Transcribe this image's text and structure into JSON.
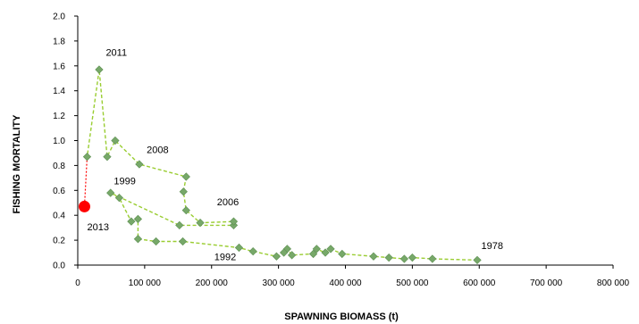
{
  "chart_data": {
    "type": "scatter",
    "title": "",
    "xlabel": "SPAWNING  BIOMASS  (t)",
    "ylabel": "FISHING  MORTALITY",
    "xlim": [
      0,
      800000
    ],
    "ylim": [
      0,
      2.0
    ],
    "x_ticks": [
      0,
      100000,
      200000,
      300000,
      400000,
      500000,
      600000,
      700000,
      800000
    ],
    "x_tick_labels": [
      "0",
      "100 000",
      "200 000",
      "300 000",
      "400 000",
      "500 000",
      "600 000",
      "700 000",
      "800 000"
    ],
    "y_ticks": [
      0.0,
      0.2,
      0.4,
      0.6,
      0.8,
      1.0,
      1.2,
      1.4,
      1.6,
      1.8,
      2.0
    ],
    "y_tick_labels": [
      "0.0",
      "0.2",
      "0.4",
      "0.6",
      "0.8",
      "1.0",
      "1.2",
      "1.4",
      "1.6",
      "1.8",
      "2.0"
    ],
    "grid": false,
    "legend": "none",
    "series": [
      {
        "style": "dashed line with diamond markers",
        "color": "#9acd32",
        "marker_color": "#77a869",
        "points": [
          {
            "x": 597000,
            "y": 0.04
          },
          {
            "x": 530000,
            "y": 0.05
          },
          {
            "x": 500000,
            "y": 0.06
          },
          {
            "x": 488000,
            "y": 0.05
          },
          {
            "x": 465000,
            "y": 0.06
          },
          {
            "x": 442000,
            "y": 0.07
          },
          {
            "x": 395000,
            "y": 0.09
          },
          {
            "x": 378000,
            "y": 0.13
          },
          {
            "x": 370000,
            "y": 0.1
          },
          {
            "x": 357000,
            "y": 0.13
          },
          {
            "x": 352000,
            "y": 0.09
          },
          {
            "x": 320000,
            "y": 0.08
          },
          {
            "x": 313000,
            "y": 0.13
          },
          {
            "x": 308000,
            "y": 0.1
          },
          {
            "x": 297000,
            "y": 0.07
          },
          {
            "x": 262000,
            "y": 0.11
          },
          {
            "x": 241000,
            "y": 0.14
          },
          {
            "x": 157000,
            "y": 0.19
          },
          {
            "x": 117000,
            "y": 0.19
          },
          {
            "x": 90000,
            "y": 0.21
          },
          {
            "x": 90000,
            "y": 0.37
          },
          {
            "x": 80000,
            "y": 0.35
          },
          {
            "x": 62000,
            "y": 0.54
          },
          {
            "x": 49000,
            "y": 0.58
          },
          {
            "x": 152000,
            "y": 0.32
          },
          {
            "x": 233000,
            "y": 0.32
          },
          {
            "x": 233000,
            "y": 0.35
          },
          {
            "x": 183000,
            "y": 0.34
          },
          {
            "x": 162000,
            "y": 0.44
          },
          {
            "x": 158000,
            "y": 0.59
          },
          {
            "x": 162000,
            "y": 0.71
          },
          {
            "x": 92000,
            "y": 0.81
          },
          {
            "x": 56000,
            "y": 1.0
          },
          {
            "x": 44000,
            "y": 0.87
          },
          {
            "x": 32000,
            "y": 1.57
          },
          {
            "x": 14000,
            "y": 0.87
          }
        ]
      }
    ],
    "highlight": {
      "label": "2013",
      "x": 10000,
      "y": 0.47,
      "color": "#ff0000",
      "connect_from": {
        "x": 14000,
        "y": 0.87
      }
    },
    "annotations": [
      {
        "text": "2011",
        "x": 42000,
        "y": 1.68
      },
      {
        "text": "2008",
        "x": 103000,
        "y": 0.9
      },
      {
        "text": "1999",
        "x": 54000,
        "y": 0.65
      },
      {
        "text": "2006",
        "x": 208000,
        "y": 0.48
      },
      {
        "text": "2013",
        "x": 14000,
        "y": 0.28
      },
      {
        "text": "1992",
        "x": 204000,
        "y": 0.04
      },
      {
        "text": "1978",
        "x": 603000,
        "y": 0.13
      }
    ]
  }
}
